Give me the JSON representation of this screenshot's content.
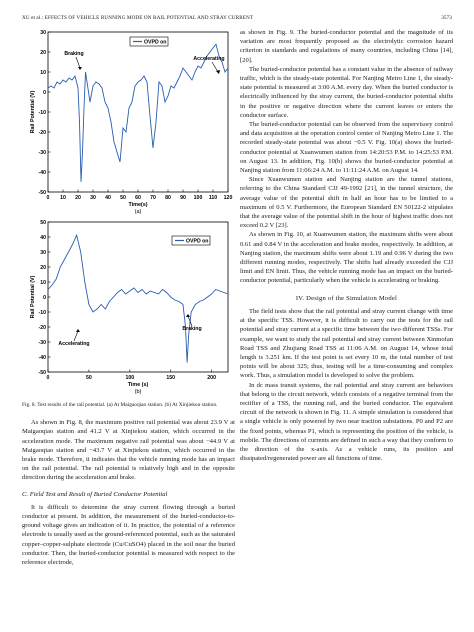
{
  "header": {
    "running_title": "XU et al.: EFFECTS OF VEHICLE RUNNING MODE ON RAIL POTENTIAL AND STRAY CURRENT",
    "page_number": "3573"
  },
  "figure": {
    "caption_label": "Fig. 8.",
    "caption_text": "Test results of the rail potential. (a) At Maigaoqiao station. (b) At Xinjiekou station."
  },
  "chart_data": [
    {
      "type": "line",
      "panel_label": "(a)",
      "xlabel": "Time(s)",
      "ylabel": "Rail Potential (V)",
      "xlim": [
        0,
        120
      ],
      "ylim": [
        -50,
        30
      ],
      "xticks": [
        0,
        10,
        20,
        30,
        40,
        50,
        60,
        70,
        80,
        90,
        100,
        110,
        120
      ],
      "yticks": [
        -50,
        -40,
        -30,
        -20,
        -10,
        0,
        10,
        20,
        30
      ],
      "grid": false,
      "legend": "top-center",
      "series": [
        {
          "name": "OVPD on",
          "color": "#2a5db0",
          "x": [
            0,
            2,
            4,
            6,
            8,
            10,
            12,
            14,
            16,
            18,
            20,
            21,
            22,
            23,
            24,
            25,
            26,
            27,
            28,
            30,
            32,
            34,
            36,
            38,
            40,
            42,
            44,
            46,
            48,
            50,
            52,
            54,
            56,
            58,
            60,
            62,
            64,
            66,
            68,
            70,
            72,
            74,
            76,
            78,
            80,
            82,
            84,
            86,
            88,
            90,
            92,
            94,
            96,
            98,
            100,
            102,
            104,
            106,
            108,
            110,
            112,
            114,
            116,
            118,
            120
          ],
          "y": [
            2,
            3,
            2,
            5,
            4,
            6,
            5,
            7,
            6,
            8,
            2,
            -15,
            -44.9,
            -30,
            -8,
            10,
            5,
            0,
            -5,
            3,
            5,
            4,
            2,
            -5,
            -8,
            -15,
            -25,
            -30,
            -35,
            -18,
            -20,
            -8,
            -5,
            3,
            5,
            6,
            8,
            5,
            -12,
            -28,
            -15,
            5,
            3,
            -5,
            -2,
            3,
            2,
            5,
            8,
            12,
            10,
            8,
            6,
            10,
            13,
            12,
            15,
            18,
            20,
            22,
            23.9,
            18,
            15,
            10,
            12
          ]
        }
      ],
      "annotations": [
        "Braking",
        "Accelerating"
      ]
    },
    {
      "type": "line",
      "panel_label": "(b)",
      "xlabel": "Time (s)",
      "ylabel": "Rail Potential (V)",
      "xlim": [
        0,
        220
      ],
      "ylim": [
        -50,
        50
      ],
      "xticks": [
        0,
        50,
        100,
        150,
        200
      ],
      "yticks": [
        -50,
        -40,
        -30,
        -20,
        -10,
        0,
        10,
        20,
        30,
        40,
        50
      ],
      "grid": false,
      "legend": "top-right",
      "series": [
        {
          "name": "OVPD on",
          "color": "#2a5db0",
          "x": [
            0,
            5,
            10,
            15,
            20,
            25,
            30,
            35,
            40,
            45,
            50,
            55,
            60,
            65,
            70,
            75,
            80,
            85,
            90,
            95,
            100,
            105,
            110,
            115,
            120,
            125,
            130,
            135,
            140,
            145,
            150,
            155,
            160,
            165,
            168,
            170,
            172,
            175,
            180,
            185,
            190,
            195,
            200,
            205,
            210,
            215,
            220
          ],
          "y": [
            5,
            8,
            12,
            20,
            25,
            30,
            35,
            41.2,
            30,
            10,
            -5,
            -10,
            -8,
            -5,
            -8,
            -3,
            0,
            3,
            5,
            2,
            4,
            6,
            3,
            5,
            2,
            4,
            3,
            2,
            5,
            3,
            0,
            -2,
            -3,
            -5,
            -20,
            -43.7,
            -25,
            -10,
            -5,
            -3,
            -2,
            0,
            2,
            5,
            4,
            3,
            2
          ]
        }
      ],
      "annotations": [
        "Accelerating",
        "Braking"
      ]
    }
  ],
  "left_text": {
    "p1": "As shown in Fig. 8, the maximum positive rail potential was about 23.9 V at Maigaoqiao station and 41.2 V at Xinjiekou station, which occurred in the acceleration mode. The maximum negative rail potential was about −44.9 V at Maigaoqiao station and −43.7 V at Xinjiekou station, which occurred in the brake mode. Therefore, it indicates that the vehicle running mode has an impact on the rail potential. The rail potential is relatively high and in the opposite direction during the acceleration and brake.",
    "subsection": "C. Field Test and Result of Buried Conductor Potential",
    "p2": "It is difficult to determine the stray current flowing through a buried conductor at present. In addition, the measurement of the buried-conductor-to-ground voltage gives an indication of it. In practice, the potential of a reference electrode is usually used as the ground-referenced potential, such as the saturated copper–copper-sulphate electrode (Cu/CuSO4) placed in the soil near the buried conductor. Then, the buried-conductor potential is measured with respect to the reference electrode,"
  },
  "right_text": {
    "p1": "as shown in Fig. 9. The buried-conductor potential and the magnitude of its variation are most frequently proposed as the electrolytic corrosion hazard criterion in standards and regulations of many countries, including China [14], [20].",
    "p2": "The buried-conductor potential has a constant value in the absence of railway traffic, which is the steady-state potential. For Nanjing Metro Line 1, the steady-state potential is measured at 3:00 A.M. every day. When the buried conductor is electrically influenced by the stray current, the buried-conductor potential shifts in the positive or negative direction where the current leaves or enters the conductor surface.",
    "p3": "The buried-conductor potential can be observed from the supervisory control and data acquisition at the operation control center of Nanjing Metro Line 1. The recorded steady-state potential was about −0.5 V. Fig. 10(a) shows the buried-conductor potential at Xuanwumen station from 14:20:53 P.M. to 14:25:53 P.M. on August 13. In addition, Fig. 10(b) shows the buried-conductor potential at Nanjing station from 11:06:24 A.M. to 11:11:24 A.M. on August 14.",
    "p4": "Since Xuanwumen station and Nanjing station are the tunnel stations, referring to the China Standard CJJ 49-1992 [21], in the tunnel structure, the average value of the potential shift in half an hour has to be limited to a maximum of 0.5 V. Furthermore, the European Standard EN 50122-2 stipulates that the average value of the potential shift in the hour of highest traffic does not exceed 0.2 V [23].",
    "p5": "As shown in Fig. 10, at Xuanwumen station, the maximum shifts were about 0.61 and 0.84 V in the acceleration and brake modes, respectively. In addition, at Nanjing station, the maximum shifts were about 1.19 and 0.96 V during the two different running modes, respectively. The shifts had already exceeded the CJJ limit and EN limit. Thus, the vehicle running mode has an impact on the buried-conductor potential, particularly when the vehicle is accelerating or braking.",
    "section": "IV. Design of the Simulation Model",
    "p6": "The field tests show that the rail potential and stray current change with time at the specific TSS. However, it is difficult to carry out the tests for the rail potential and stray current at a specific time between the two different TSSs. For example, we want to study the rail potential and stray current between Xinmofan Road TSS and Zhujiang Road TSS at 11:06 A.M. on August 14, whose total length is 3.251 km. If the test point is set every 10 m, the total number of test points will be about 325; thus, testing will be a time-consuming and complex work. Thus, a simulation model is developed to solve the problem.",
    "p7": "In dc mass transit systems, the rail potential and stray current are behaviors that belong to the circuit network, which consists of a negative terminal from the rectifier of a TSS, the running rail, and the buried conductor. The equivalent circuit of the network is shown in Fig. 11. A simple simulation is considered that a single vehicle is only powered by two near traction substations. P0 and P2 are the fixed points, whereas P1, which is representing the position of the vehicle, is mobile. The directions of currents are defined in such a way that they conform to the direction of the x-axis. As a vehicle runs, its position and dissipated/regenerated power are all functions of time."
  }
}
